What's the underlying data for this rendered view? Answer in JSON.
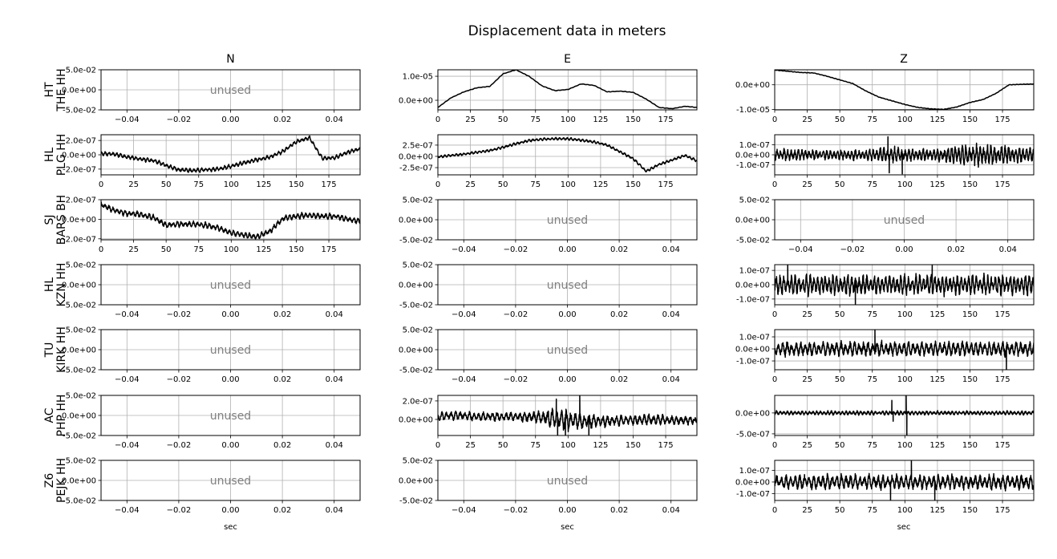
{
  "chart_data": {
    "type": "line",
    "title": "Displacement data in meters",
    "xlabel": "sec",
    "columns": [
      "N",
      "E",
      "Z"
    ],
    "grid": true,
    "line_color": "#000000",
    "grid_color": "#b0b0b0",
    "unused_color": "#808080",
    "unused_panel": {
      "label": "unused",
      "xlim": [
        -0.05,
        0.05
      ],
      "xticks": [
        -0.04,
        -0.02,
        0.0,
        0.02,
        0.04
      ],
      "xtick_labels": [
        "−0.04",
        "−0.02",
        "0.00",
        "0.02",
        "0.04"
      ],
      "ylim": [
        -0.05,
        0.05
      ],
      "yticks": [
        0.05,
        0.0,
        -0.05
      ],
      "ytick_labels": [
        "5.0e-02",
        "0.0e+00",
        "-5.0e-02"
      ]
    },
    "trace_xlim": [
      0,
      199
    ],
    "trace_xticks": [
      0,
      25,
      50,
      75,
      100,
      125,
      150,
      175
    ],
    "trace_xtick_labels": [
      "0",
      "25",
      "50",
      "75",
      "100",
      "125",
      "150",
      "175"
    ],
    "x_sample": [
      0,
      10,
      20,
      30,
      40,
      50,
      60,
      70,
      80,
      90,
      100,
      110,
      120,
      130,
      140,
      150,
      160,
      170,
      180,
      190,
      199
    ],
    "rows": [
      {
        "network": "HT",
        "station": "THE HH",
        "panels": [
          {
            "unused": true
          },
          {
            "ylim": [
              -4e-06,
              1.27e-05
            ],
            "yticks": [
              1e-05,
              0
            ],
            "ytick_labels": [
              "1.0e-05",
              "0.0e+00"
            ],
            "values": [
              -3e-06,
              1e-06,
              3.5e-06,
              5.2e-06,
              5.8e-06,
              1.1e-05,
              1.27e-05,
              1e-05,
              6e-06,
              4e-06,
              4.5e-06,
              6.8e-06,
              6.2e-06,
              3.5e-06,
              3.8e-06,
              3.3e-06,
              5e-07,
              -3e-06,
              -3.5e-06,
              -2.5e-06,
              -3e-06
            ],
            "noise": 1e-07
          },
          {
            "ylim": [
              -1.02e-05,
              6.1e-06
            ],
            "yticks": [
              0,
              -1e-05
            ],
            "ytick_labels": [
              "0.0e+00",
              "-1.0e-05"
            ],
            "values": [
              6e-06,
              5.5e-06,
              5e-06,
              4.8e-06,
              3.5e-06,
              2e-06,
              5e-07,
              -2.5e-06,
              -5e-06,
              -6.5e-06,
              -8e-06,
              -9.2e-06,
              -9.8e-06,
              -1e-05,
              -9e-06,
              -7.2e-06,
              -6e-06,
              -3.5e-06,
              0,
              2e-07,
              3e-07
            ],
            "noise": 1e-07
          }
        ]
      },
      {
        "network": "HL",
        "station": "PLG HH",
        "panels": [
          {
            "ylim": [
              -2.8e-07,
              2.8e-07
            ],
            "yticks": [
              2e-07,
              0,
              -2e-07
            ],
            "ytick_labels": [
              "2.0e-07",
              "0.0e+00",
              "-2.0e-07"
            ],
            "values": [
              2e-08,
              1e-08,
              -3e-08,
              -6e-08,
              -8e-08,
              -1.5e-07,
              -2.1e-07,
              -2.2e-07,
              -2.1e-07,
              -2e-07,
              -1.6e-07,
              -1.1e-07,
              -7e-08,
              -3e-08,
              5e-08,
              1.8e-07,
              2.4e-07,
              -5e-08,
              -4e-08,
              4e-08,
              8e-08
            ],
            "noise": 3e-08
          },
          {
            "ylim": [
              -4.1e-07,
              4.8e-07
            ],
            "yticks": [
              2.5e-07,
              0,
              -2.5e-07
            ],
            "ytick_labels": [
              "2.5e-07",
              "0.0e+00",
              "-2.5e-07"
            ],
            "values": [
              -1e-08,
              2e-08,
              5e-08,
              9e-08,
              1.3e-07,
              2e-07,
              2.8e-07,
              3.5e-07,
              3.8e-07,
              3.9e-07,
              3.9e-07,
              3.6e-07,
              3.2e-07,
              2.5e-07,
              1e-07,
              -5e-08,
              -3.3e-07,
              -1.8e-07,
              -8e-08,
              2e-08,
              -1e-07
            ],
            "noise": 3e-08
          },
          {
            "ylim": [
              -2e-07,
              2e-07
            ],
            "yticks": [
              1e-07,
              0,
              -1e-07
            ],
            "ytick_labels": [
              "1.0e-07",
              "0.0e+00",
              "-1.0e-07"
            ],
            "values": [
              0,
              0,
              0,
              0,
              0,
              0,
              0,
              0,
              0,
              0,
              0,
              0,
              0,
              0,
              0,
              0,
              0,
              0,
              0,
              0,
              0
            ],
            "noise": [
              6e-08,
              6e-08,
              6e-08,
              5e-08,
              5e-08,
              5e-08,
              5e-08,
              5e-08,
              7e-08,
              8e-08,
              6e-08,
              6e-08,
              6e-08,
              8e-08,
              1e-07,
              1e-07,
              1.1e-07,
              1e-07,
              9e-08,
              8e-08,
              7e-08
            ],
            "spikes": [
              [
                87,
                1.8e-07
              ],
              [
                88,
                -1.8e-07
              ],
              [
                98,
                -1.9e-07
              ]
            ]
          }
        ]
      },
      {
        "network": "SJ",
        "station": "BARS BH",
        "panels": [
          {
            "ylim": [
              -2.1e-07,
              2e-07
            ],
            "yticks": [
              2e-07,
              0,
              -2e-07
            ],
            "ytick_labels": [
              "2.0e-07",
              "0.0e+00",
              "-2.0e-07"
            ],
            "values": [
              1.5e-07,
              9e-08,
              6e-08,
              5e-08,
              2e-08,
              -6e-08,
              -5e-08,
              -5e-08,
              -6e-08,
              -9e-08,
              -1.4e-07,
              -1.6e-07,
              -1.8e-07,
              -1.2e-07,
              1e-08,
              3e-08,
              4e-08,
              3e-08,
              3e-08,
              0,
              -2e-08
            ],
            "noise": 3e-08
          },
          {
            "unused": true
          },
          {
            "unused": true
          }
        ]
      },
      {
        "network": "HL",
        "station": "KZN HH",
        "panels": [
          {
            "unused": true
          },
          {
            "unused": true
          },
          {
            "ylim": [
              -1.4e-07,
              1.4e-07
            ],
            "yticks": [
              1e-07,
              0,
              -1e-07
            ],
            "ytick_labels": [
              "1.0e-07",
              "0.0e+00",
              "-1.0e-07"
            ],
            "values": [
              0,
              0,
              0,
              0,
              0,
              0,
              0,
              0,
              0,
              0,
              0,
              0,
              0,
              0,
              0,
              0,
              0,
              0,
              0,
              0,
              0
            ],
            "noise": 7e-08,
            "spikes": [
              [
                10,
                1.4e-07
              ],
              [
                62,
                -1.4e-07
              ],
              [
                121,
                1.4e-07
              ]
            ]
          }
        ]
      },
      {
        "network": "TU",
        "station": "KIRK HH",
        "panels": [
          {
            "unused": true
          },
          {
            "unused": true
          },
          {
            "ylim": [
              -1.73e-07,
              1.6e-07
            ],
            "yticks": [
              1e-07,
              0,
              -1e-07
            ],
            "ytick_labels": [
              "1.0e-07",
              "0.0e+00",
              "-1.0e-07"
            ],
            "values": [
              0,
              0,
              0,
              0,
              0,
              0,
              0,
              0,
              0,
              0,
              0,
              0,
              0,
              0,
              0,
              0,
              0,
              0,
              0,
              0,
              0
            ],
            "noise": 6e-08,
            "spikes": [
              [
                77,
                1.6e-07
              ],
              [
                178,
                -1.73e-07
              ]
            ]
          }
        ]
      },
      {
        "network": "AC",
        "station": "PHP HH",
        "panels": [
          {
            "unused": true
          },
          {
            "ylim": [
              -1.74e-07,
              2.6e-07
            ],
            "yticks": [
              2e-07,
              0
            ],
            "ytick_labels": [
              "2.0e-07",
              "0.0e+00"
            ],
            "values": [
              3e-08,
              4e-08,
              4e-08,
              3e-08,
              3e-08,
              3e-08,
              3e-08,
              3e-08,
              2e-08,
              1e-08,
              -1e-08,
              -2e-08,
              -2e-08,
              -2e-08,
              -1e-08,
              -1e-08,
              0,
              0,
              -1e-08,
              -1e-08,
              -1e-08
            ],
            "noise": [
              5e-08,
              5e-08,
              5e-08,
              5e-08,
              5e-08,
              5e-08,
              5e-08,
              6e-08,
              8e-08,
              1.2e-07,
              1.2e-07,
              9e-08,
              7e-08,
              6e-08,
              6e-08,
              6e-08,
              6e-08,
              6e-08,
              5e-08,
              5e-08,
              5e-08
            ],
            "spikes": [
              [
                91,
                2.2e-07
              ],
              [
                92,
                -1.74e-07
              ],
              [
                98,
                -1.74e-07
              ],
              [
                109,
                2.6e-07
              ],
              [
                116,
                -1.74e-07
              ]
            ]
          },
          {
            "ylim": [
              -5.4e-07,
              4.2e-07
            ],
            "yticks": [
              0,
              -5e-07
            ],
            "ytick_labels": [
              "0.0e+00",
              "-5.0e-07"
            ],
            "values": [
              0,
              0,
              0,
              0,
              0,
              0,
              0,
              0,
              0,
              0,
              0,
              0,
              0,
              0,
              0,
              0,
              0,
              0,
              0,
              0,
              0
            ],
            "noise": 5e-08,
            "spikes": [
              [
                90,
                3e-07
              ],
              [
                91,
                -2e-07
              ],
              [
                101,
                4.2e-07
              ],
              [
                101.5,
                -5.4e-07
              ]
            ]
          }
        ]
      },
      {
        "network": "Z6",
        "station": "PEJK HH",
        "panels": [
          {
            "unused": true
          },
          {
            "unused": true
          },
          {
            "ylim": [
              -1.59e-07,
              1.86e-07
            ],
            "yticks": [
              1e-07,
              0,
              -1e-07
            ],
            "ytick_labels": [
              "1.0e-07",
              "0.0e+00",
              "-1.0e-07"
            ],
            "values": [
              0,
              0,
              0,
              0,
              0,
              0,
              0,
              0,
              0,
              0,
              0,
              0,
              0,
              0,
              0,
              0,
              0,
              0,
              0,
              0,
              0
            ],
            "noise": 6.5e-08,
            "spikes": [
              [
                89,
                -1.59e-07
              ],
              [
                105,
                1.86e-07
              ],
              [
                123,
                -1.59e-07
              ]
            ]
          }
        ]
      }
    ]
  }
}
